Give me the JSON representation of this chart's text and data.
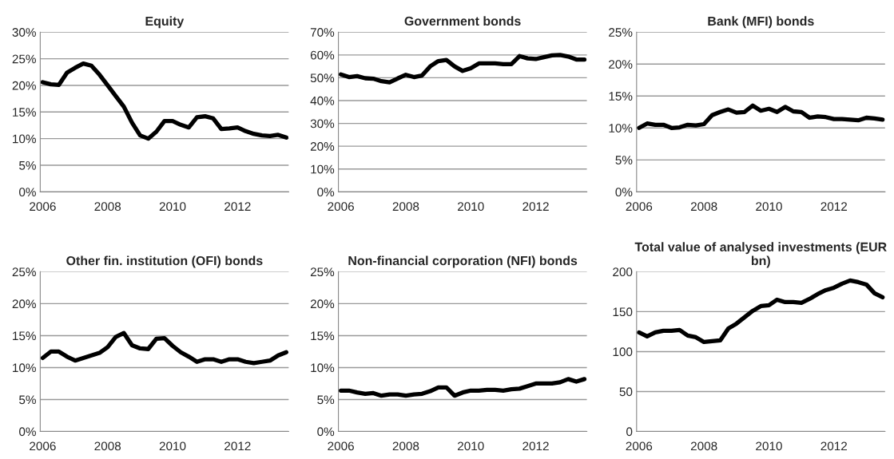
{
  "chart_data": [
    {
      "type": "line",
      "title": "Equity",
      "categories": [
        "2006",
        null,
        null,
        null,
        null,
        null,
        null,
        null,
        "2008",
        null,
        null,
        null,
        null,
        null,
        null,
        null,
        "2010",
        null,
        null,
        null,
        null,
        null,
        null,
        null,
        "2012",
        null,
        null,
        null,
        null,
        null,
        null
      ],
      "series": [
        {
          "color": "#000000",
          "values": [
            20.6,
            20.2,
            20.1,
            22.4,
            23.3,
            24.1,
            23.7,
            22.0,
            20.0,
            18.0,
            16.0,
            13.0,
            10.6,
            10.0,
            11.3,
            13.3,
            13.3,
            12.6,
            12.1,
            14.0,
            14.2,
            13.8,
            11.8,
            11.9,
            12.1,
            11.4,
            10.9,
            10.6,
            10.5,
            10.7,
            10.2
          ]
        }
      ],
      "ylim": [
        0,
        30
      ],
      "yticks": [
        {
          "value": 0,
          "label": "0%"
        },
        {
          "value": 5,
          "label": "5%"
        },
        {
          "value": 10,
          "label": "10%"
        },
        {
          "value": 15,
          "label": "15%"
        },
        {
          "value": 20,
          "label": "20%"
        },
        {
          "value": 25,
          "label": "25%"
        },
        {
          "value": 30,
          "label": "30%"
        }
      ],
      "grid": "y",
      "line_style": "solid",
      "marker": "none"
    },
    {
      "type": "line",
      "title": "Government bonds",
      "categories": [
        "2006",
        null,
        null,
        null,
        null,
        null,
        null,
        null,
        "2008",
        null,
        null,
        null,
        null,
        null,
        null,
        null,
        "2010",
        null,
        null,
        null,
        null,
        null,
        null,
        null,
        "2012",
        null,
        null,
        null,
        null,
        null,
        null
      ],
      "series": [
        {
          "color": "#000000",
          "values": [
            51.5,
            50.3,
            50.7,
            49.8,
            49.6,
            48.5,
            48.0,
            49.7,
            51.3,
            50.3,
            51.0,
            55.0,
            57.3,
            57.8,
            55.0,
            53.0,
            54.2,
            56.3,
            56.3,
            56.3,
            56.0,
            56.0,
            59.5,
            58.5,
            58.2,
            59.0,
            59.8,
            60.0,
            59.3,
            58.0,
            58.0
          ]
        }
      ],
      "ylim": [
        0,
        70
      ],
      "yticks": [
        {
          "value": 0,
          "label": "0%"
        },
        {
          "value": 10,
          "label": "10%"
        },
        {
          "value": 20,
          "label": "20%"
        },
        {
          "value": 30,
          "label": "30%"
        },
        {
          "value": 40,
          "label": "40%"
        },
        {
          "value": 50,
          "label": "50%"
        },
        {
          "value": 60,
          "label": "60%"
        },
        {
          "value": 70,
          "label": "70%"
        }
      ],
      "grid": "y",
      "line_style": "solid",
      "marker": "none"
    },
    {
      "type": "line",
      "title": "Bank (MFI) bonds",
      "categories": [
        "2006",
        null,
        null,
        null,
        null,
        null,
        null,
        null,
        "2008",
        null,
        null,
        null,
        null,
        null,
        null,
        null,
        "2010",
        null,
        null,
        null,
        null,
        null,
        null,
        null,
        "2012",
        null,
        null,
        null,
        null,
        null,
        null
      ],
      "series": [
        {
          "color": "#000000",
          "values": [
            10.0,
            10.7,
            10.5,
            10.5,
            10.0,
            10.1,
            10.5,
            10.4,
            10.6,
            12.0,
            12.5,
            12.9,
            12.4,
            12.5,
            13.5,
            12.7,
            13.0,
            12.5,
            13.3,
            12.6,
            12.5,
            11.6,
            11.8,
            11.7,
            11.4,
            11.4,
            11.3,
            11.2,
            11.6,
            11.5,
            11.3
          ]
        }
      ],
      "ylim": [
        0,
        25
      ],
      "yticks": [
        {
          "value": 0,
          "label": "0%"
        },
        {
          "value": 5,
          "label": "5%"
        },
        {
          "value": 10,
          "label": "10%"
        },
        {
          "value": 15,
          "label": "15%"
        },
        {
          "value": 20,
          "label": "20%"
        },
        {
          "value": 25,
          "label": "25%"
        }
      ],
      "grid": "y",
      "line_style": "solid",
      "marker": "none"
    },
    {
      "type": "line",
      "title": "Other fin. institution (OFI) bonds",
      "categories": [
        "2006",
        null,
        null,
        null,
        null,
        null,
        null,
        null,
        "2008",
        null,
        null,
        null,
        null,
        null,
        null,
        null,
        "2010",
        null,
        null,
        null,
        null,
        null,
        null,
        null,
        "2012",
        null,
        null,
        null,
        null,
        null,
        null
      ],
      "series": [
        {
          "color": "#000000",
          "values": [
            11.5,
            12.5,
            12.5,
            11.7,
            11.1,
            11.5,
            11.9,
            12.3,
            13.2,
            14.8,
            15.4,
            13.5,
            13.0,
            12.9,
            14.5,
            14.6,
            13.4,
            12.4,
            11.7,
            10.9,
            11.3,
            11.3,
            10.9,
            11.3,
            11.3,
            10.9,
            10.7,
            10.9,
            11.1,
            11.9,
            12.4
          ]
        }
      ],
      "ylim": [
        0,
        25
      ],
      "yticks": [
        {
          "value": 0,
          "label": "0%"
        },
        {
          "value": 5,
          "label": "5%"
        },
        {
          "value": 10,
          "label": "10%"
        },
        {
          "value": 15,
          "label": "15%"
        },
        {
          "value": 20,
          "label": "20%"
        },
        {
          "value": 25,
          "label": "25%"
        }
      ],
      "grid": "y",
      "line_style": "solid",
      "marker": "none"
    },
    {
      "type": "line",
      "title": "Non-financial corporation (NFI) bonds",
      "categories": [
        "2006",
        null,
        null,
        null,
        null,
        null,
        null,
        null,
        "2008",
        null,
        null,
        null,
        null,
        null,
        null,
        null,
        "2010",
        null,
        null,
        null,
        null,
        null,
        null,
        null,
        "2012",
        null,
        null,
        null,
        null,
        null,
        null
      ],
      "series": [
        {
          "color": "#000000",
          "values": [
            6.4,
            6.4,
            6.1,
            5.9,
            6.0,
            5.6,
            5.8,
            5.8,
            5.6,
            5.8,
            5.9,
            6.3,
            6.9,
            6.9,
            5.6,
            6.1,
            6.4,
            6.4,
            6.5,
            6.5,
            6.4,
            6.6,
            6.7,
            7.1,
            7.5,
            7.5,
            7.5,
            7.7,
            8.2,
            7.8,
            8.2
          ]
        }
      ],
      "ylim": [
        0,
        25
      ],
      "yticks": [
        {
          "value": 0,
          "label": "0%"
        },
        {
          "value": 5,
          "label": "5%"
        },
        {
          "value": 10,
          "label": "10%"
        },
        {
          "value": 15,
          "label": "15%"
        },
        {
          "value": 20,
          "label": "20%"
        },
        {
          "value": 25,
          "label": "25%"
        }
      ],
      "grid": "y",
      "line_style": "solid",
      "marker": "none"
    },
    {
      "type": "line",
      "title": "Total value of analysed investments (EUR bn)",
      "categories": [
        "2006",
        null,
        null,
        null,
        null,
        null,
        null,
        null,
        "2008",
        null,
        null,
        null,
        null,
        null,
        null,
        null,
        "2010",
        null,
        null,
        null,
        null,
        null,
        null,
        null,
        "2012",
        null,
        null,
        null,
        null,
        null,
        null
      ],
      "series": [
        {
          "color": "#000000",
          "values": [
            124,
            119,
            124,
            126,
            126,
            127,
            120,
            118,
            112,
            113,
            114,
            129,
            135,
            143,
            151,
            157,
            158,
            165,
            162,
            162,
            161,
            166,
            172,
            177,
            180,
            185,
            189,
            187,
            184,
            173,
            168
          ]
        }
      ],
      "ylim": [
        0,
        200
      ],
      "yticks": [
        0,
        50,
        100,
        150,
        200
      ],
      "grid": "y",
      "line_style": "solid",
      "marker": "none"
    }
  ]
}
